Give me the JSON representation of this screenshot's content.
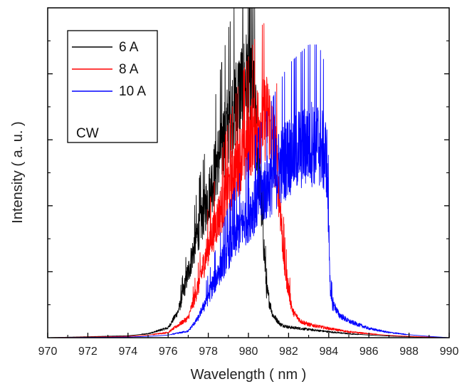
{
  "chart_data": {
    "type": "line",
    "title": "",
    "xlabel": "Wavelength ( nm )",
    "ylabel": "Intensity ( a. u. )",
    "xlim": [
      970,
      990
    ],
    "ylim": [
      0,
      1
    ],
    "x_ticks": [
      "970",
      "972",
      "974",
      "976",
      "978",
      "980",
      "982",
      "984",
      "986",
      "988",
      "990"
    ],
    "y_ticks_labeled": false,
    "grid": false,
    "legend_position": "top-left",
    "annotation": "CW",
    "series": [
      {
        "name": "6 A",
        "color": "#000000",
        "noise": 0.35,
        "x": [
          970,
          974,
          975,
          976,
          976.5,
          977,
          977.5,
          978,
          978.5,
          979,
          979.5,
          980,
          980.3,
          980.6,
          980.9,
          981.2,
          981.6,
          982,
          983,
          984,
          985,
          986,
          987,
          988,
          990
        ],
        "y": [
          0,
          0.006,
          0.012,
          0.03,
          0.08,
          0.2,
          0.33,
          0.43,
          0.55,
          0.66,
          0.74,
          0.8,
          0.72,
          0.45,
          0.15,
          0.07,
          0.04,
          0.032,
          0.025,
          0.018,
          0.012,
          0.008,
          0.005,
          0.003,
          0
        ]
      },
      {
        "name": "8 A",
        "color": "#ff0000",
        "noise": 0.35,
        "x": [
          970,
          974,
          975,
          976,
          977,
          977.5,
          978,
          978.5,
          979,
          979.5,
          980,
          980.5,
          981,
          981.4,
          981.8,
          982.2,
          982.6,
          983,
          984,
          985,
          986,
          987,
          988,
          990
        ],
        "y": [
          0,
          0.004,
          0.008,
          0.016,
          0.06,
          0.16,
          0.28,
          0.37,
          0.46,
          0.54,
          0.6,
          0.66,
          0.68,
          0.55,
          0.22,
          0.08,
          0.05,
          0.04,
          0.028,
          0.018,
          0.012,
          0.007,
          0.004,
          0
        ]
      },
      {
        "name": "10 A",
        "color": "#0000ff",
        "noise": 0.4,
        "x": [
          970,
          974,
          975,
          976,
          977,
          977.5,
          978,
          978.5,
          979,
          979.5,
          980,
          980.5,
          981,
          981.5,
          982,
          982.5,
          983,
          983.5,
          983.9,
          984.1,
          984.5,
          985,
          986,
          987,
          988,
          989,
          990
        ],
        "y": [
          0,
          0.002,
          0.004,
          0.008,
          0.02,
          0.06,
          0.13,
          0.2,
          0.27,
          0.33,
          0.38,
          0.43,
          0.47,
          0.52,
          0.56,
          0.58,
          0.6,
          0.6,
          0.55,
          0.12,
          0.07,
          0.05,
          0.028,
          0.016,
          0.009,
          0.004,
          0
        ]
      }
    ]
  }
}
